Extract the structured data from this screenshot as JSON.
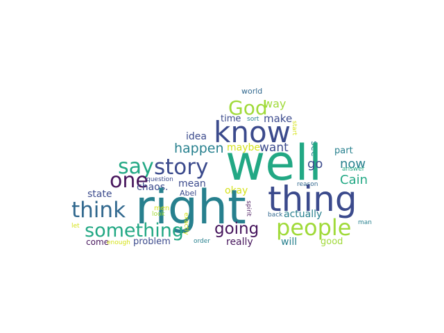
{
  "palette": {
    "purple": "#46155c",
    "indigo": "#3b4a8c",
    "blue": "#31688e",
    "teal": "#27808e",
    "green": "#22a884",
    "lime": "#7ad151",
    "yellowgreen": "#a0da39",
    "yellow": "#d5e21a"
  },
  "words": [
    {
      "id": "world",
      "text": "world"
    },
    {
      "id": "god",
      "text": "God"
    },
    {
      "id": "way",
      "text": "way"
    },
    {
      "id": "know",
      "text": "know"
    },
    {
      "id": "time",
      "text": "time"
    },
    {
      "id": "sort",
      "text": "sort"
    },
    {
      "id": "make",
      "text": "make"
    },
    {
      "id": "start",
      "text": "start"
    },
    {
      "id": "idea",
      "text": "idea"
    },
    {
      "id": "happen",
      "text": "happen"
    },
    {
      "id": "maybe",
      "text": "maybe"
    },
    {
      "id": "want",
      "text": "want"
    },
    {
      "id": "see",
      "text": "see"
    },
    {
      "id": "part",
      "text": "part"
    },
    {
      "id": "say",
      "text": "say"
    },
    {
      "id": "story",
      "text": "story"
    },
    {
      "id": "well",
      "text": "well"
    },
    {
      "id": "go",
      "text": "go"
    },
    {
      "id": "now",
      "text": "now"
    },
    {
      "id": "answer",
      "text": "answer"
    },
    {
      "id": "one",
      "text": "one"
    },
    {
      "id": "mean",
      "text": "mean"
    },
    {
      "id": "cain",
      "text": "Cain"
    },
    {
      "id": "question",
      "text": "question"
    },
    {
      "id": "chaos",
      "text": "chaos."
    },
    {
      "id": "state",
      "text": "state"
    },
    {
      "id": "abel",
      "text": "Abel"
    },
    {
      "id": "okay",
      "text": "okay"
    },
    {
      "id": "reason",
      "text": "reason"
    },
    {
      "id": "thing",
      "text": "thing"
    },
    {
      "id": "right",
      "text": "right"
    },
    {
      "id": "think",
      "text": "think"
    },
    {
      "id": "spirit",
      "text": "spirit"
    },
    {
      "id": "actually",
      "text": "actually"
    },
    {
      "id": "men",
      "text": "men"
    },
    {
      "id": "look",
      "text": "look"
    },
    {
      "id": "exactly",
      "text": "exactly"
    },
    {
      "id": "back",
      "text": "back"
    },
    {
      "id": "man",
      "text": "man"
    },
    {
      "id": "people",
      "text": "people"
    },
    {
      "id": "something",
      "text": "something"
    },
    {
      "id": "going",
      "text": "going"
    },
    {
      "id": "let",
      "text": "let"
    },
    {
      "id": "come",
      "text": "come"
    },
    {
      "id": "enough",
      "text": "enough"
    },
    {
      "id": "problem",
      "text": "problem"
    },
    {
      "id": "really",
      "text": "really"
    },
    {
      "id": "will",
      "text": "will"
    },
    {
      "id": "good",
      "text": "good"
    },
    {
      "id": "order",
      "text": "order"
    }
  ]
}
